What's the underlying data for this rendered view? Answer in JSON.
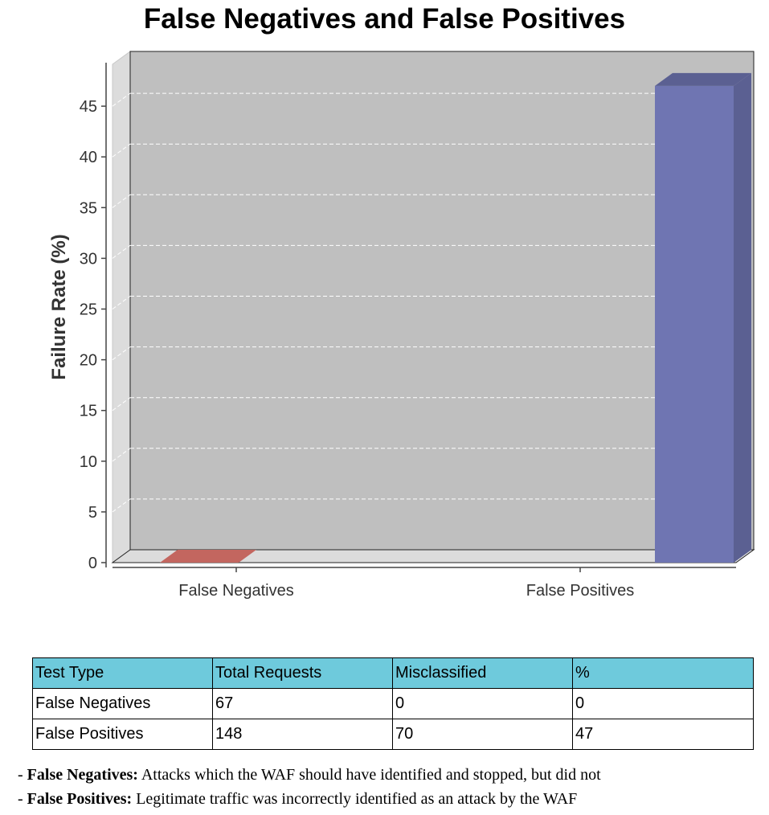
{
  "chart_data": {
    "type": "bar",
    "title": "False Negatives and False Positives",
    "ylabel": "Failure Rate (%)",
    "xlabel": "",
    "categories": [
      "False Negatives",
      "False Positives"
    ],
    "values": [
      0,
      47
    ],
    "colors": [
      "#ee7c74",
      "#6f75b2"
    ],
    "ylim": [
      0,
      50
    ],
    "yticks": [
      0,
      5,
      10,
      15,
      20,
      25,
      30,
      35,
      40,
      45
    ],
    "grid": true,
    "style": "3d"
  },
  "table": {
    "headers": [
      "Test Type",
      "Total Requests",
      "Misclassified",
      "%"
    ],
    "rows": [
      [
        "False Negatives",
        "67",
        "0",
        "0"
      ],
      [
        "False Positives",
        "148",
        "70",
        "47"
      ]
    ]
  },
  "notes": [
    {
      "prefix": "- ",
      "term": "False Negatives:",
      "text": " Attacks which the WAF should have identified and stopped, but did not"
    },
    {
      "prefix": "- ",
      "term": "False Positives:",
      "text": " Legitimate traffic was incorrectly identified as an attack by the WAF"
    }
  ]
}
